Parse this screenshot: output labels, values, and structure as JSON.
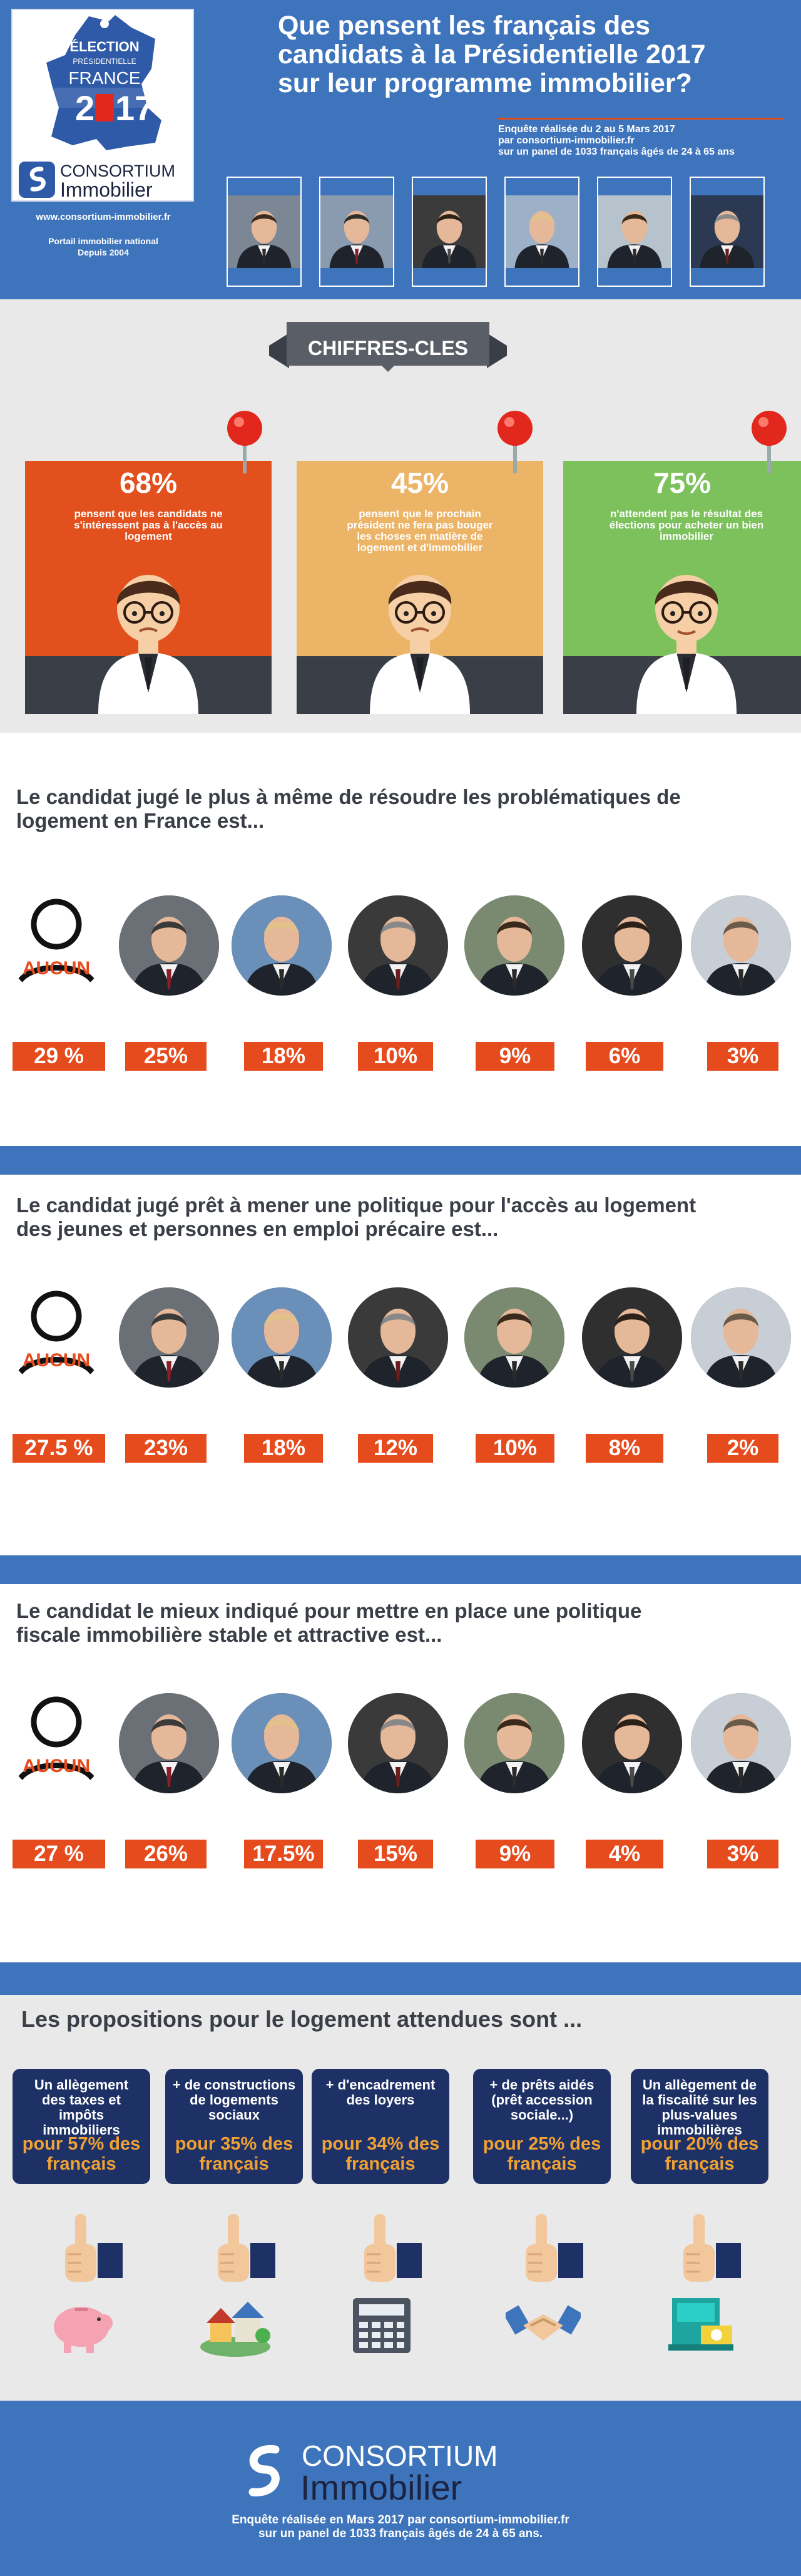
{
  "header": {
    "map_line1": "ÉLECTION",
    "map_line2": "PRÉSIDENTIELLE",
    "map_line3": "FRANCE",
    "map_year_a": "2",
    "map_year_b": "17",
    "brand_line1": "CONSORTIUM",
    "brand_line2": "Immobilier",
    "website": "www.consortium-immobilier.fr",
    "portal_line1": "Portail immobilier national",
    "portal_line2": "Depuis 2004",
    "title_line1": "Que pensent les français des",
    "title_line2": "candidats à la Présidentielle 2017",
    "title_line3": "sur leur programme immobilier?",
    "info_line1": "Enquête réalisée du 2 au 5 Mars 2017",
    "info_line2": "par consortium-immobilier.fr",
    "info_line3": "sur un panel de 1033 français âgés de 24 à 65 ans"
  },
  "keyfigures": {
    "banner": "CHIFFRES-CLES",
    "cards": [
      {
        "pct": "68%",
        "line1": "pensent que les candidats ne",
        "line2": "s'intéressent pas à l'accès au",
        "line3": "logement",
        "line4": ""
      },
      {
        "pct": "45%",
        "line1": "pensent que le prochain",
        "line2": "président ne fera pas bouger",
        "line3": "les choses en matière de",
        "line4": "logement et d'immobilier"
      },
      {
        "pct": "75%",
        "line1": "n'attendent pas le résultat des",
        "line2": "élections pour acheter un bien",
        "line3": "immobilier",
        "line4": ""
      }
    ],
    "colors": {
      "card1": "#e2501d",
      "card2": "#ecb466",
      "card3": "#7cc15b",
      "desk": "#3a3e47"
    }
  },
  "survey1": {
    "title_line1": "Le candidat jugé le plus à même de résoudre les problématiques de",
    "title_line2": "logement en France est...",
    "aucun": "AUCUN",
    "values": [
      "29 %",
      "25%",
      "18%",
      "10%",
      "9%",
      "6%",
      "3%"
    ]
  },
  "survey2": {
    "title_line1": "Le candidat jugé prêt à mener une politique pour l'accès au logement",
    "title_line2": "des jeunes et personnes en emploi précaire est...",
    "aucun": "AUCUN",
    "values": [
      "27.5 %",
      "23%",
      "18%",
      "12%",
      "10%",
      "8%",
      "2%"
    ]
  },
  "survey3": {
    "title_line1": "Le candidat le mieux indiqué pour mettre en place une politique",
    "title_line2": "fiscale immobilière stable et attractive est...",
    "aucun": "AUCUN",
    "values": [
      "27 %",
      "26%",
      "17.5%",
      "15%",
      "9%",
      "4%",
      "3%"
    ]
  },
  "propositions": {
    "title": "Les propositions pour le logement attendues sont ...",
    "cards": [
      {
        "l1": "Un allègement",
        "l2": "des taxes et impôts",
        "l3": "immobiliers",
        "l4": "",
        "p1": "pour 57% des",
        "p2": "français"
      },
      {
        "l1": "+ de constructions",
        "l2": "de logements",
        "l3": "sociaux",
        "l4": "",
        "p1": "pour 35% des",
        "p2": "français"
      },
      {
        "l1": "+ d'encadrement",
        "l2": "des loyers",
        "l3": "",
        "l4": "",
        "p1": "pour 34% des",
        "p2": "français"
      },
      {
        "l1": "+ de prêts aidés",
        "l2": "(prêt accession",
        "l3": "sociale...)",
        "l4": "",
        "p1": "pour 25% des",
        "p2": "français"
      },
      {
        "l1": "Un allègement de",
        "l2": "la fiscalité sur les",
        "l3": "plus-values",
        "l4": "immobilières",
        "p1": "pour 20% des",
        "p2": "français"
      }
    ],
    "icons": [
      "piggy-bank-icon",
      "houses-icon",
      "calculator-icon",
      "handshake-icon",
      "cash-register-icon"
    ]
  },
  "footer": {
    "brand_line1": "CONSORTIUM",
    "brand_line2": "Immobilier",
    "note_line1": "Enquête réalisée en Mars 2017 par consortium-immobilier.fr",
    "note_line2": "sur un panel de 1033 français âgés de 24 à 65 ans."
  }
}
